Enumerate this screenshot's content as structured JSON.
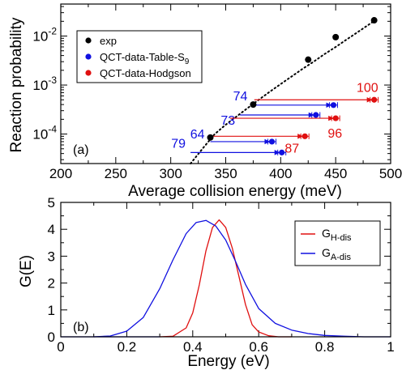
{
  "colors": {
    "exp": "#000000",
    "qct_table": "#1010e0",
    "qct_hodgson": "#e01010"
  },
  "chart_data": [
    {
      "type": "scatter",
      "panel_label": "(a)",
      "xlabel": "Average collision energy (meV)",
      "ylabel": "Reaction probability",
      "xlim": [
        200,
        500
      ],
      "ylim": [
        2.5e-05,
        0.045
      ],
      "yscale": "log",
      "x_ticks": [
        "200",
        "250",
        "300",
        "350",
        "400",
        "450",
        "500"
      ],
      "y_ticks": [
        {
          "value": 0.0001,
          "base": "10",
          "exp": "-4"
        },
        {
          "value": 0.001,
          "base": "10",
          "exp": "-3"
        },
        {
          "value": 0.01,
          "base": "10",
          "exp": "-2"
        }
      ],
      "legend_position": "top-left",
      "series": [
        {
          "name": "exp",
          "color": "#000000",
          "points": [
            {
              "x": 336,
              "y": 8.5e-05
            },
            {
              "x": 375,
              "y": 0.0004
            },
            {
              "x": 425,
              "y": 0.0033
            },
            {
              "x": 450,
              "y": 0.0095
            },
            {
              "x": 485,
              "y": 0.021
            }
          ],
          "fit_curve": {
            "x": [
              318,
              330,
              340,
              350,
              360,
              370,
              380,
              390,
              400,
              410,
              420,
              430,
              440,
              450,
              460,
              470,
              486
            ],
            "y": [
              2.5e-05,
              5.4e-05,
              0.0001,
              0.000155,
              0.00023,
              0.00034,
              0.0005,
              0.00073,
              0.00105,
              0.0015,
              0.00215,
              0.003,
              0.0043,
              0.006,
              0.0085,
              0.012,
              0.021
            ]
          }
        },
        {
          "name": "QCT-data-Table-S9",
          "legend_main": "QCT-data-Table-S",
          "legend_sub": "9",
          "color": "#1010e0",
          "points": [
            {
              "x": 392,
              "y": 7e-05,
              "x_from": 336,
              "label": "64"
            },
            {
              "x": 401,
              "y": 4.2e-05,
              "x_from": 318,
              "label": "79"
            },
            {
              "x": 432,
              "y": 0.000245,
              "x_from": 363,
              "label": "73"
            },
            {
              "x": 448,
              "y": 0.00039,
              "x_from": 375,
              "label": "74"
            }
          ]
        },
        {
          "name": "QCT-data-Hodgson",
          "color": "#e01010",
          "points": [
            {
              "x": 422,
              "y": 9e-05,
              "x_from": 336,
              "label": "87"
            },
            {
              "x": 450,
              "y": 0.00021,
              "x_from": 354,
              "label": "96"
            },
            {
              "x": 485,
              "y": 0.0005,
              "x_from": 376,
              "label": "100"
            }
          ]
        }
      ]
    },
    {
      "type": "line",
      "panel_label": "(b)",
      "xlabel": "Energy (eV)",
      "ylabel": "G(E)",
      "xlim": [
        0,
        1
      ],
      "ylim": [
        0,
        5
      ],
      "x_ticks": [
        "0",
        "0.2",
        "0.4",
        "0.6",
        "0.8",
        "1"
      ],
      "y_ticks": [
        "0",
        "0.5",
        "1",
        "1.5",
        "2",
        "2.5",
        "3",
        "3.5",
        "4",
        "4.5",
        "5"
      ],
      "legend_position": "top-right",
      "series": [
        {
          "name": "G_H-dis",
          "legend_main": "G",
          "legend_sub": "H-dis",
          "color": "#e01010",
          "x": [
            0.3,
            0.34,
            0.38,
            0.4,
            0.42,
            0.44,
            0.46,
            0.48,
            0.5,
            0.52,
            0.54,
            0.56,
            0.58,
            0.6,
            0.63,
            0.66,
            0.7
          ],
          "y": [
            0.0,
            0.02,
            0.33,
            0.89,
            1.93,
            3.2,
            4.07,
            4.35,
            4.07,
            3.3,
            2.25,
            1.2,
            0.45,
            0.18,
            0.04,
            0.0,
            0.0
          ]
        },
        {
          "name": "G_A-dis",
          "legend_main": "G",
          "legend_sub": "A-dis",
          "color": "#1010e0",
          "x": [
            0.1,
            0.15,
            0.2,
            0.25,
            0.3,
            0.34,
            0.38,
            0.41,
            0.44,
            0.47,
            0.5,
            0.53,
            0.56,
            0.6,
            0.65,
            0.7,
            0.75,
            0.8,
            0.86,
            0.92,
            1.0
          ],
          "y": [
            0.0,
            0.03,
            0.21,
            0.72,
            1.79,
            2.86,
            3.84,
            4.25,
            4.33,
            4.12,
            3.6,
            2.8,
            1.95,
            1.05,
            0.5,
            0.25,
            0.12,
            0.05,
            0.02,
            0.0,
            0.0
          ]
        }
      ]
    }
  ]
}
